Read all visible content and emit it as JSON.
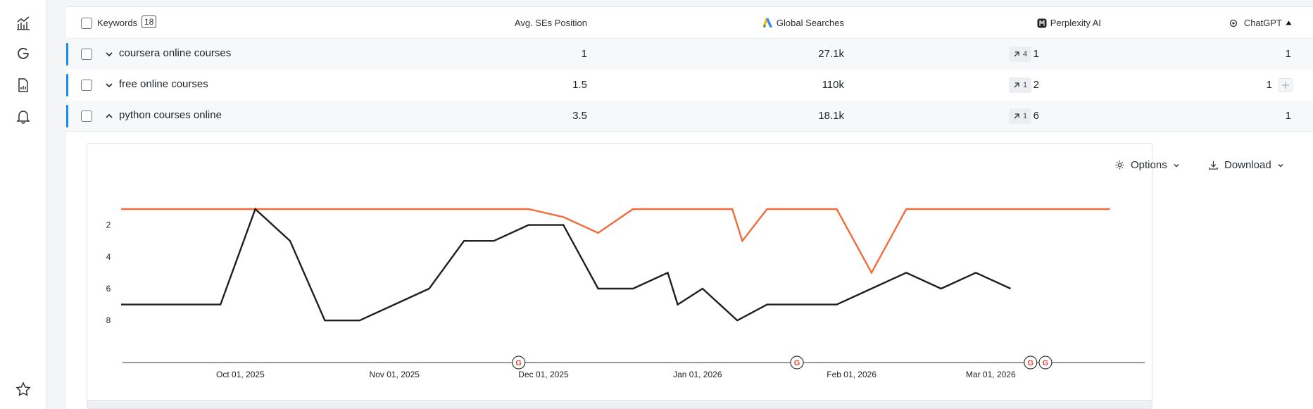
{
  "sidebar": {
    "items": [
      {
        "icon": "chart-icon"
      },
      {
        "icon": "google-icon"
      },
      {
        "icon": "report-icon"
      },
      {
        "icon": "bell-icon"
      },
      {
        "icon": "star-icon"
      }
    ]
  },
  "table": {
    "headers": {
      "keywords": "Keywords",
      "keywords_count": "18",
      "avg_position": "Avg. SEs Position",
      "global_searches": "Global Searches",
      "perplexity": "Perplexity AI",
      "chatgpt": "ChatGPT"
    },
    "rows": [
      {
        "keyword": "coursera online courses",
        "avg": "1",
        "searches": "27.1k",
        "perplexity": "1",
        "perplexity_trend": "4",
        "chatgpt": "1",
        "expanded": false
      },
      {
        "keyword": "free online courses",
        "avg": "1.5",
        "searches": "110k",
        "perplexity": "2",
        "perplexity_trend": "1",
        "chatgpt": "1",
        "expanded": false
      },
      {
        "keyword": "python courses online",
        "avg": "3.5",
        "searches": "18.1k",
        "perplexity": "6",
        "perplexity_trend": "1",
        "chatgpt": "1",
        "expanded": true
      }
    ]
  },
  "chart": {
    "options_label": "Options",
    "download_label": "Download",
    "google_marker": "G",
    "colors": {
      "series_a": "#f26b3a",
      "series_b": "#1f1f1f",
      "accent": "#1a8cf0"
    }
  },
  "chart_data": {
    "type": "line",
    "title": "",
    "xlabel": "",
    "ylabel": "",
    "ylim": [
      10,
      0
    ],
    "y_ticks": [
      "2",
      "4",
      "6",
      "8"
    ],
    "x_tick_labels": [
      "Oct 01, 2025",
      "Nov 01, 2025",
      "Dec 01, 2025",
      "Jan 01, 2026",
      "Feb 01, 2026",
      "Mar 01, 2026"
    ],
    "x_tick_days": [
      24,
      55,
      85,
      116,
      147,
      175
    ],
    "x_range_days": [
      0,
      204
    ],
    "google_update_days": [
      80,
      136,
      183,
      186
    ],
    "series": [
      {
        "name": "orange",
        "color": "#f26b3a",
        "points": [
          [
            0,
            1
          ],
          [
            7,
            1
          ],
          [
            14,
            1
          ],
          [
            20,
            1
          ],
          [
            27,
            1
          ],
          [
            34,
            1
          ],
          [
            41,
            1
          ],
          [
            48,
            1
          ],
          [
            55,
            1
          ],
          [
            62,
            1
          ],
          [
            69,
            1
          ],
          [
            75,
            1
          ],
          [
            82,
            1
          ],
          [
            89,
            1.5
          ],
          [
            96,
            2.5
          ],
          [
            103,
            1
          ],
          [
            110,
            1
          ],
          [
            116,
            1
          ],
          [
            123,
            1
          ],
          [
            125,
            3
          ],
          [
            130,
            1
          ],
          [
            137,
            1
          ],
          [
            144,
            1
          ],
          [
            151,
            5
          ],
          [
            158,
            1
          ],
          [
            165,
            1
          ],
          [
            172,
            1
          ],
          [
            179,
            1
          ],
          [
            186,
            1
          ],
          [
            192,
            1
          ],
          [
            199,
            1
          ]
        ]
      },
      {
        "name": "black",
        "color": "#1f1f1f",
        "points": [
          [
            0,
            7
          ],
          [
            7,
            7
          ],
          [
            14,
            7
          ],
          [
            20,
            7
          ],
          [
            27,
            1
          ],
          [
            34,
            3
          ],
          [
            41,
            8
          ],
          [
            48,
            8
          ],
          [
            55,
            7
          ],
          [
            62,
            6
          ],
          [
            69,
            3
          ],
          [
            75,
            3
          ],
          [
            82,
            2
          ],
          [
            89,
            2
          ],
          [
            96,
            6
          ],
          [
            103,
            6
          ],
          [
            110,
            5
          ],
          [
            112,
            7
          ],
          [
            117,
            6
          ],
          [
            124,
            8
          ],
          [
            130,
            7
          ],
          [
            137,
            7
          ],
          [
            144,
            7
          ],
          [
            151,
            6
          ],
          [
            158,
            5
          ],
          [
            165,
            6
          ],
          [
            172,
            5
          ],
          [
            179,
            6
          ]
        ]
      }
    ]
  }
}
